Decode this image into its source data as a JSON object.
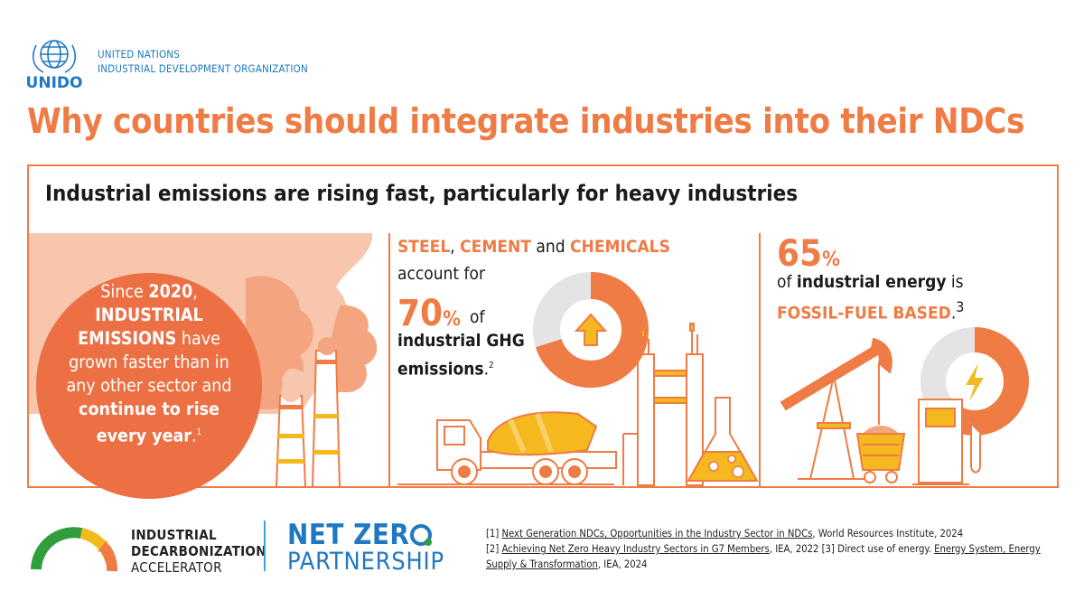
{
  "header": {
    "org_logo_text": "UNIDO",
    "org_name_line1": "UNITED NATIONS",
    "org_name_line2": "INDUSTRIAL DEVELOPMENT ORGANIZATION",
    "title": "Why countries should integrate industries into their NDCs"
  },
  "panel": {
    "subtitle": "Industrial emissions are rising fast, particularly for heavy industries"
  },
  "left": {
    "part1": "Since ",
    "year": "2020",
    "part2": ",",
    "highlight": "INDUSTRIAL EMISSIONS",
    "part3": " have grown faster than in any other sector and ",
    "highlight2": "continue to rise every year",
    "part4": ".",
    "ref": "1"
  },
  "middle": {
    "steel": "STEEL",
    "sep1": ", ",
    "cement": "CEMENT",
    "and": " and ",
    "chemicals": "CHEMICALS",
    "account": "account for",
    "pct_value": "70",
    "pct_sign": "%",
    "of": "of",
    "ghg": "industrial GHG",
    "emissions": "emissions",
    "ref": "2",
    "share": 0.7
  },
  "right": {
    "pct_value": "65",
    "pct_sign": "%",
    "of": "of ",
    "energy": "industrial energy",
    "is": " is",
    "fossil": "FOSSIL-FUEL BASED",
    "ref": "3",
    "share": 0.65
  },
  "footer": {
    "ida_line1": "INDUSTRIAL",
    "ida_line2": "DECARBONIZATION",
    "ida_line3": "ACCELERATOR",
    "nzp_line1": "NET ZER",
    "nzp_line2": "PARTNERSHIP",
    "ref1_num": "[1] ",
    "ref1_link": "Next Generation NDCs, Opportunities in the Industry Sector in NDCs",
    "ref1_tail": ", World Resources Institute, 2024",
    "ref2_num": "[2] ",
    "ref2_link": "Achieving Net Zero Heavy Industry Sectors in G7 Members",
    "ref2_tail": ", IEA, 2022 [3] Direct use of energy. ",
    "ref3_link": "Energy System, Energy Supply & Transformation",
    "ref3_tail": ", IEA, 2024"
  },
  "colors": {
    "accent": "#ef7b45",
    "accent_dark": "#ec7044",
    "smoke_light": "#f7c6ad",
    "smoke_mid": "#f4a57f",
    "yellow": "#f5b81e",
    "gray": "#e4e4e4",
    "un_blue": "#1f78c1",
    "green": "#2f9e3c"
  }
}
